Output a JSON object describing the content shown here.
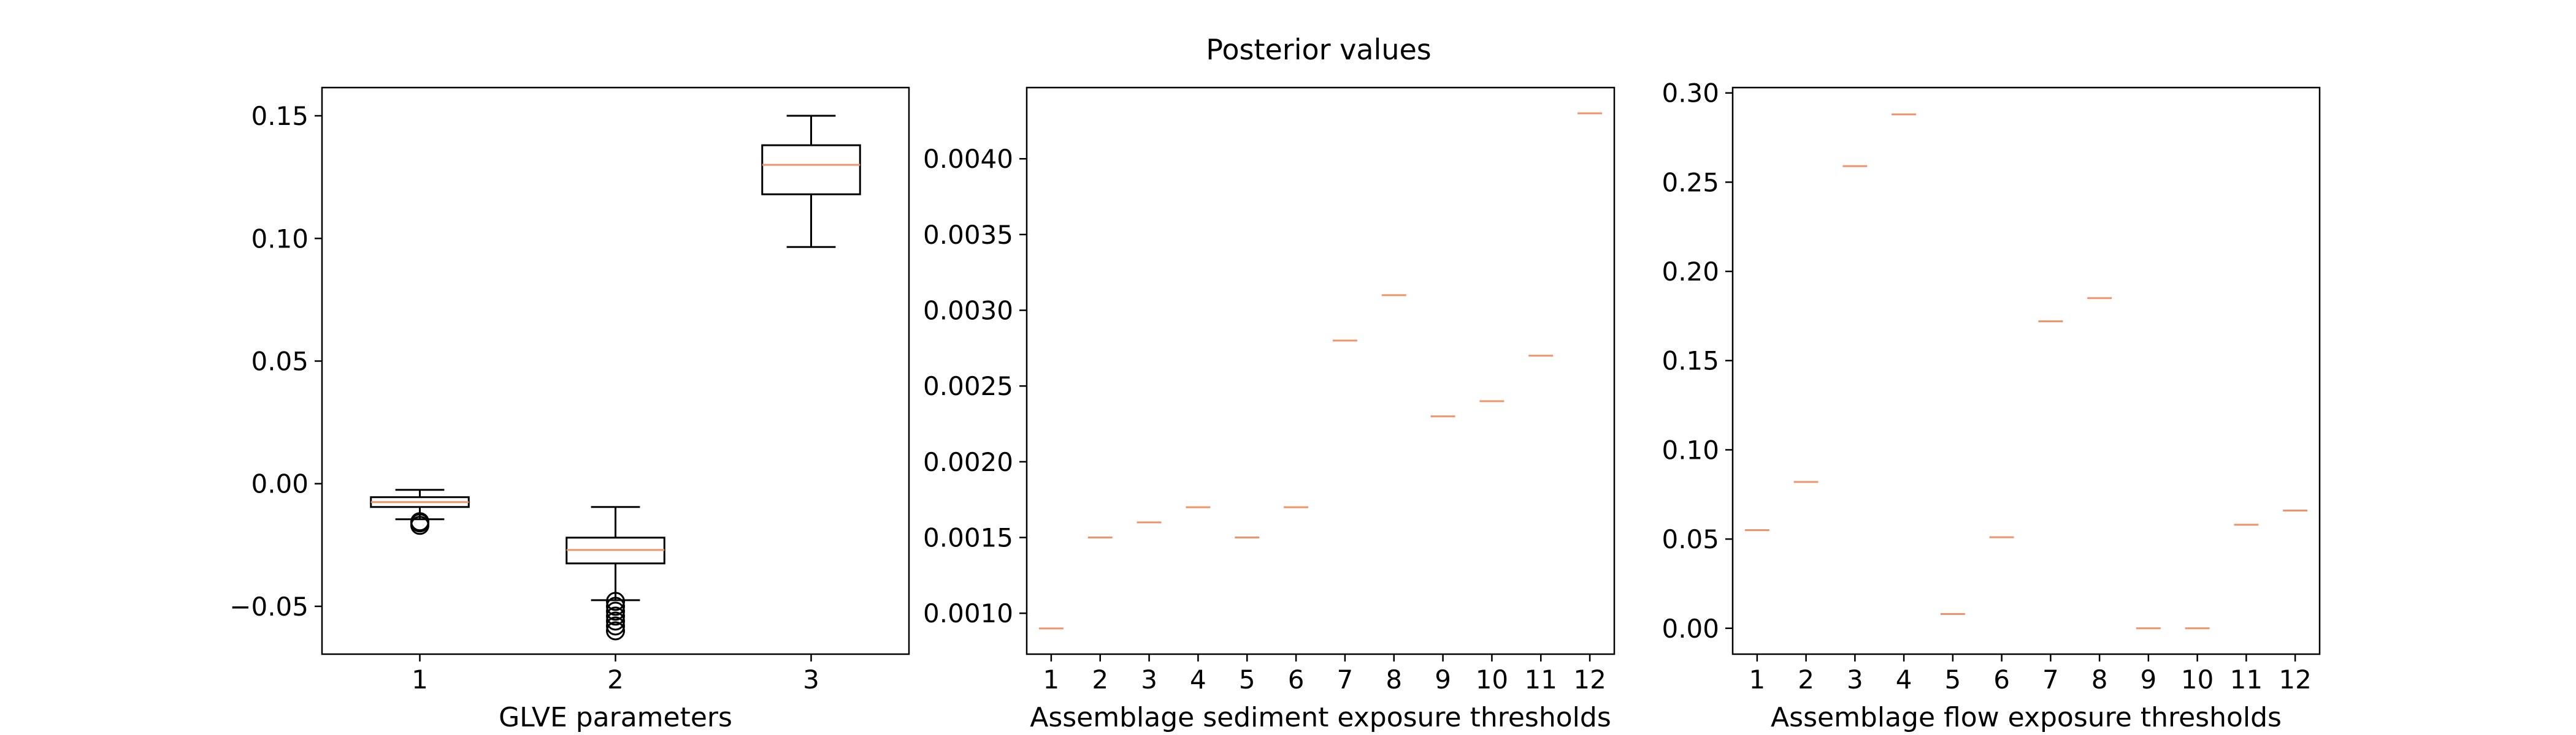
{
  "title": "Posterior values",
  "colors": {
    "median": "#f0936a",
    "box": "#000000",
    "background": "#ffffff"
  },
  "chart_data": [
    {
      "type": "box",
      "xlabel": "GLVE parameters",
      "ylabel": "",
      "categories": [
        "1",
        "2",
        "3"
      ],
      "ylim": [
        -0.0695,
        0.1615
      ],
      "yticks": [
        -0.05,
        0.0,
        0.05,
        0.1,
        0.15
      ],
      "ytick_labels": [
        "−0.05",
        "0.00",
        "0.05",
        "0.10",
        "0.15"
      ],
      "boxes": [
        {
          "whisker_low": -0.0145,
          "q1": -0.0095,
          "median": -0.0075,
          "q3": -0.0055,
          "whisker_high": -0.0025,
          "outliers": [
            -0.0155,
            -0.016,
            -0.017
          ]
        },
        {
          "whisker_low": -0.0475,
          "q1": -0.0325,
          "median": -0.027,
          "q3": -0.022,
          "whisker_high": -0.0095,
          "outliers": [
            -0.048,
            -0.05,
            -0.052,
            -0.054,
            -0.056,
            -0.058,
            -0.06
          ]
        },
        {
          "whisker_low": 0.0965,
          "q1": 0.118,
          "median": 0.13,
          "q3": 0.138,
          "whisker_high": 0.15,
          "outliers": []
        }
      ]
    },
    {
      "type": "box",
      "xlabel": "Assemblage sediment exposure thresholds",
      "ylabel": "",
      "categories": [
        "1",
        "2",
        "3",
        "4",
        "5",
        "6",
        "7",
        "8",
        "9",
        "10",
        "11",
        "12"
      ],
      "ylim": [
        0.00073,
        0.00447
      ],
      "yticks": [
        0.001,
        0.0015,
        0.002,
        0.0025,
        0.003,
        0.0035,
        0.004
      ],
      "ytick_labels": [
        "0.0010",
        "0.0015",
        "0.0020",
        "0.0025",
        "0.0030",
        "0.0035",
        "0.0040"
      ],
      "values": [
        0.0009,
        0.0015,
        0.0016,
        0.0017,
        0.0015,
        0.0017,
        0.0028,
        0.0031,
        0.0023,
        0.0024,
        0.0027,
        0.0043
      ]
    },
    {
      "type": "box",
      "xlabel": "Assemblage flow exposure thresholds",
      "ylabel": "",
      "categories": [
        "1",
        "2",
        "3",
        "4",
        "5",
        "6",
        "7",
        "8",
        "9",
        "10",
        "11",
        "12"
      ],
      "ylim": [
        -0.0145,
        0.303
      ],
      "yticks": [
        0.0,
        0.05,
        0.1,
        0.15,
        0.2,
        0.25,
        0.3
      ],
      "ytick_labels": [
        "0.00",
        "0.05",
        "0.10",
        "0.15",
        "0.20",
        "0.25",
        "0.30"
      ],
      "values": [
        0.055,
        0.082,
        0.259,
        0.288,
        0.008,
        0.051,
        0.172,
        0.185,
        0.0,
        0.0,
        0.058,
        0.066
      ]
    }
  ]
}
